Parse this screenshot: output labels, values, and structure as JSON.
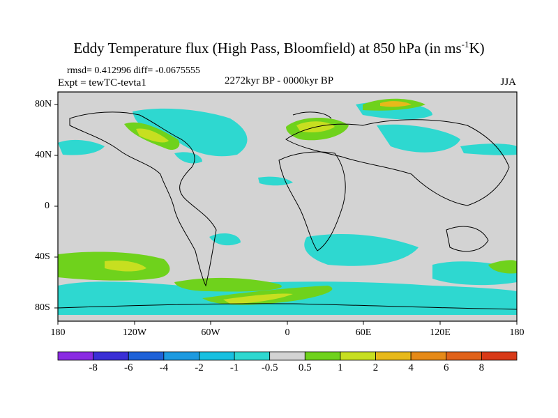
{
  "title": {
    "main": "Eddy Temperature flux (High Pass, Bloomfield) at 850 hPa (in ms",
    "sup": "-1",
    "end": "K)"
  },
  "stats": "rmsd= 0.412996 diff= -0.0675555",
  "experiment": "Expt = tewTC-tevta1",
  "period": "2272kyr BP - 0000kyr BP",
  "season": "JJA",
  "lat_labels": [
    "80N",
    "40N",
    "0",
    "40S",
    "80S"
  ],
  "lon_labels": [
    "180",
    "120W",
    "60W",
    "0",
    "60E",
    "120E",
    "180"
  ],
  "colorbar": {
    "labels": [
      "-8",
      "-6",
      "-4",
      "-2",
      "-1",
      "-0.5",
      "0.5",
      "1",
      "2",
      "4",
      "6",
      "8"
    ],
    "colors": [
      "#8a2be2",
      "#3b2fd6",
      "#1f62d8",
      "#1d9ae0",
      "#18c0e0",
      "#2ed8d0",
      "#d3d3d3",
      "#6fd21c",
      "#c7df20",
      "#e7b91a",
      "#e68a18",
      "#e0621a",
      "#d83a18"
    ]
  },
  "colors": {
    "land_neutral": "#d3d3d3",
    "coast": "#000000"
  }
}
